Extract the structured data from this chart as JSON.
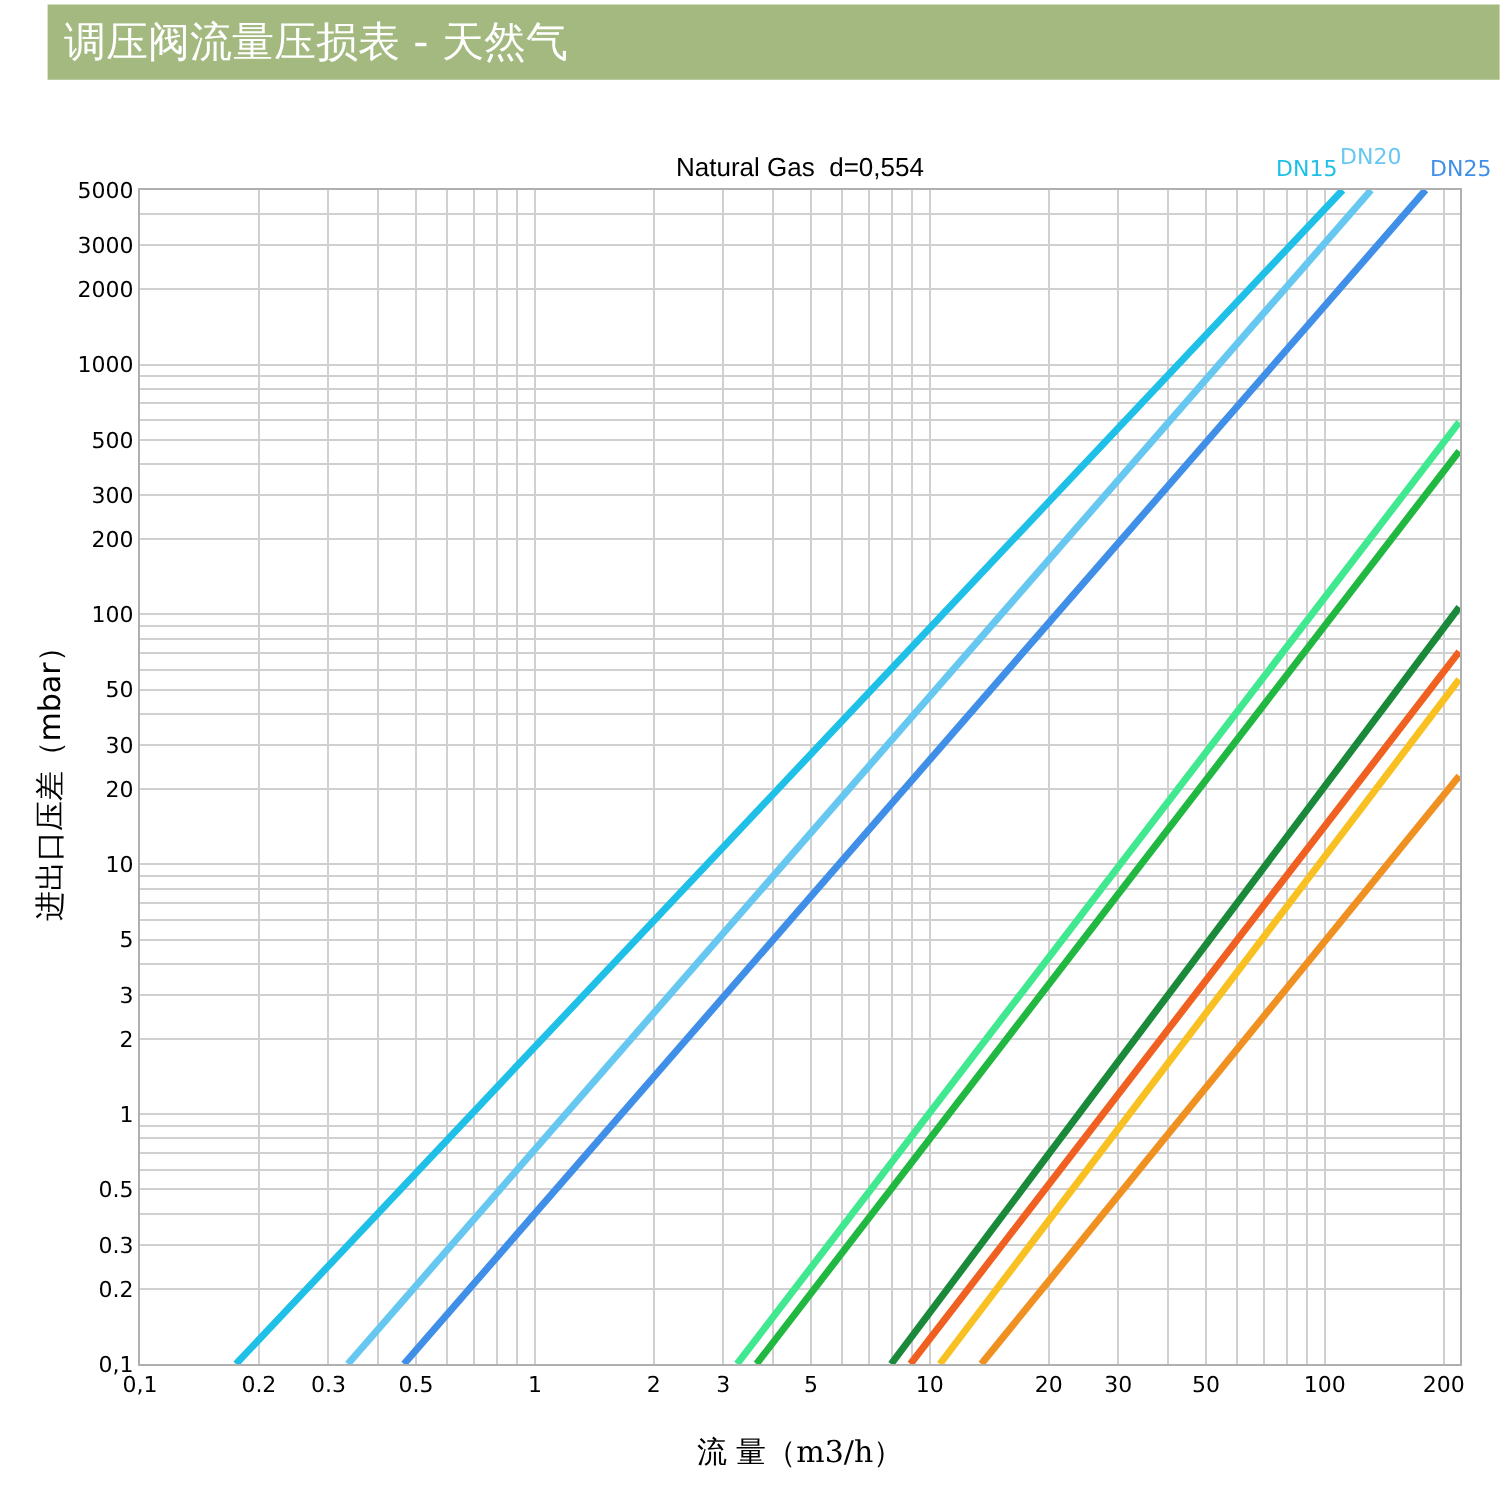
{
  "chart_data": {
    "type": "line",
    "title": "调压阀流量压损表 - 天然气",
    "subtitle": "Natural Gas  d=0,554",
    "xlabel": "流 量（m3/h）",
    "ylabel": "进出口压差（mbar）",
    "log": "xy",
    "grid": true,
    "legend": false,
    "marker": "none",
    "line_style": "solid",
    "xlim": [
      0.1,
      220
    ],
    "ylim": [
      0.1,
      5000
    ],
    "xticks": [
      {
        "value": 0.1,
        "label": "0,1"
      },
      0.2,
      0.3,
      {
        "value": 0.4,
        "label": null
      },
      0.5,
      {
        "value": 0.6,
        "label": null
      },
      {
        "value": 0.7,
        "label": null
      },
      {
        "value": 0.8,
        "label": null
      },
      {
        "value": 0.9,
        "label": null
      },
      1,
      2,
      3,
      {
        "value": 4,
        "label": null
      },
      5,
      {
        "value": 6,
        "label": null
      },
      {
        "value": 7,
        "label": null
      },
      {
        "value": 8,
        "label": null
      },
      {
        "value": 9,
        "label": null
      },
      10,
      20,
      30,
      {
        "value": 40,
        "label": null
      },
      50,
      {
        "value": 60,
        "label": null
      },
      {
        "value": 70,
        "label": null
      },
      {
        "value": 80,
        "label": null
      },
      {
        "value": 90,
        "label": null
      },
      100,
      200
    ],
    "yticks": [
      {
        "value": 0.1,
        "label": "0,1"
      },
      0.2,
      0.3,
      {
        "value": 0.4,
        "label": null
      },
      0.5,
      {
        "value": 0.6,
        "label": null
      },
      {
        "value": 0.7,
        "label": null
      },
      {
        "value": 0.8,
        "label": null
      },
      {
        "value": 0.9,
        "label": null
      },
      1,
      2,
      3,
      {
        "value": 4,
        "label": null
      },
      5,
      {
        "value": 6,
        "label": null
      },
      {
        "value": 7,
        "label": null
      },
      {
        "value": 8,
        "label": null
      },
      {
        "value": 9,
        "label": null
      },
      10,
      20,
      30,
      {
        "value": 40,
        "label": null
      },
      50,
      {
        "value": 60,
        "label": null
      },
      {
        "value": 70,
        "label": null
      },
      {
        "value": 80,
        "label": null
      },
      {
        "value": 90,
        "label": null
      },
      100,
      200,
      300,
      {
        "value": 400,
        "label": null
      },
      500,
      {
        "value": 600,
        "label": null
      },
      {
        "value": 700,
        "label": null
      },
      {
        "value": 800,
        "label": null
      },
      {
        "value": 900,
        "label": null
      },
      1000,
      2000,
      3000,
      {
        "value": 4000,
        "label": null
      },
      5000
    ],
    "series": [
      {
        "name": "DN15",
        "color": "#1ec0e8",
        "x": [
          0.175,
          111
        ],
        "values": [
          0.1,
          5000
        ]
      },
      {
        "name": "DN20",
        "color": "#66c8f0",
        "x": [
          0.336,
          131
        ],
        "values": [
          0.1,
          5000
        ]
      },
      {
        "name": "DN25",
        "color": "#3f8fe8",
        "x": [
          0.466,
          180
        ],
        "values": [
          0.1,
          5000
        ]
      },
      {
        "color": "#40e890",
        "x": [
          3.25,
          219
        ],
        "values": [
          0.1,
          589
        ]
      },
      {
        "color": "#20b840",
        "x": [
          3.64,
          219
        ],
        "values": [
          0.1,
          451
        ]
      },
      {
        "color": "#1a8a3a",
        "x": [
          7.98,
          219
        ],
        "values": [
          0.1,
          107
        ]
      },
      {
        "color": "#f06020",
        "x": [
          8.93,
          219
        ],
        "values": [
          0.1,
          71
        ]
      },
      {
        "color": "#f8c020",
        "x": [
          10.6,
          219
        ],
        "values": [
          0.1,
          55
        ]
      },
      {
        "color": "#f09020",
        "x": [
          13.5,
          219
        ],
        "values": [
          0.1,
          22.6
        ]
      }
    ]
  }
}
